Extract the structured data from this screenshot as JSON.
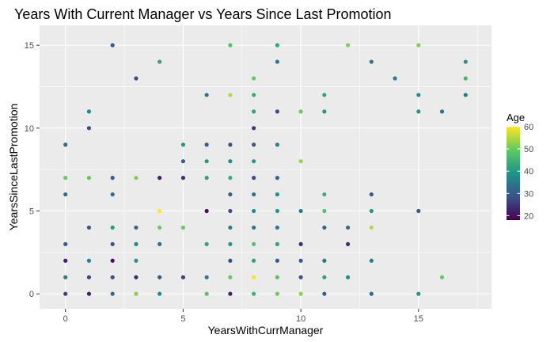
{
  "chart_data": {
    "type": "scatter",
    "title": "Years With Current Manager vs Years Since Last Promotion",
    "xlabel": "YearsWithCurrManager",
    "ylabel": "YearsSinceLastPromotion",
    "xlim": [
      -1.1,
      18.1
    ],
    "ylim": [
      -0.9,
      16.2
    ],
    "xticks": [
      0,
      5,
      10,
      15
    ],
    "yticks": [
      0,
      5,
      10,
      15
    ],
    "grid": true,
    "panel_background": "#ebebeb",
    "grid_color": "#ffffff",
    "color_scale": {
      "name": "viridis",
      "variable": "Age",
      "range": [
        18,
        60
      ],
      "ticks": [
        20,
        30,
        40,
        50,
        60
      ],
      "stops": [
        "#440154",
        "#3b528b",
        "#21918c",
        "#5ec962",
        "#fde725"
      ]
    },
    "legend": {
      "title": "Age",
      "placement": "right"
    },
    "points": [
      {
        "x": 0,
        "y": 9,
        "age": 32
      },
      {
        "x": 0,
        "y": 7,
        "age": 50
      },
      {
        "x": 0,
        "y": 6,
        "age": 33
      },
      {
        "x": 0,
        "y": 3,
        "age": 30
      },
      {
        "x": 0,
        "y": 2,
        "age": 22
      },
      {
        "x": 0,
        "y": 1,
        "age": 35
      },
      {
        "x": 0,
        "y": 0,
        "age": 26
      },
      {
        "x": 1,
        "y": 11,
        "age": 38
      },
      {
        "x": 1,
        "y": 10,
        "age": 28
      },
      {
        "x": 1,
        "y": 7,
        "age": 50
      },
      {
        "x": 1,
        "y": 4,
        "age": 29
      },
      {
        "x": 1,
        "y": 2,
        "age": 36
      },
      {
        "x": 1,
        "y": 1,
        "age": 27
      },
      {
        "x": 1,
        "y": 0,
        "age": 22
      },
      {
        "x": 2,
        "y": 15,
        "age": 30
      },
      {
        "x": 2,
        "y": 7,
        "age": 30
      },
      {
        "x": 2,
        "y": 6,
        "age": 32
      },
      {
        "x": 2,
        "y": 4,
        "age": 40
      },
      {
        "x": 2,
        "y": 3,
        "age": 29
      },
      {
        "x": 2,
        "y": 2,
        "age": 20
      },
      {
        "x": 2,
        "y": 1,
        "age": 28
      },
      {
        "x": 2,
        "y": 0,
        "age": 32
      },
      {
        "x": 3,
        "y": 13,
        "age": 28
      },
      {
        "x": 3,
        "y": 7,
        "age": 52
      },
      {
        "x": 3,
        "y": 4,
        "age": 32
      },
      {
        "x": 3,
        "y": 3,
        "age": 38
      },
      {
        "x": 3,
        "y": 2,
        "age": 40
      },
      {
        "x": 3,
        "y": 1,
        "age": 23
      },
      {
        "x": 3,
        "y": 0,
        "age": 52
      },
      {
        "x": 4,
        "y": 14,
        "age": 42
      },
      {
        "x": 4,
        "y": 7,
        "age": 22
      },
      {
        "x": 4,
        "y": 5,
        "age": 60
      },
      {
        "x": 4,
        "y": 4,
        "age": 50
      },
      {
        "x": 4,
        "y": 3,
        "age": 33
      },
      {
        "x": 4,
        "y": 1,
        "age": 30
      },
      {
        "x": 4,
        "y": 0,
        "age": 38
      },
      {
        "x": 5,
        "y": 9,
        "age": 40
      },
      {
        "x": 5,
        "y": 8,
        "age": 30
      },
      {
        "x": 5,
        "y": 7,
        "age": 24
      },
      {
        "x": 5,
        "y": 4,
        "age": 50
      },
      {
        "x": 5,
        "y": 1,
        "age": 26
      },
      {
        "x": 6,
        "y": 12,
        "age": 35
      },
      {
        "x": 6,
        "y": 9,
        "age": 30
      },
      {
        "x": 6,
        "y": 8,
        "age": 40
      },
      {
        "x": 6,
        "y": 7,
        "age": 42
      },
      {
        "x": 6,
        "y": 5,
        "age": 20
      },
      {
        "x": 6,
        "y": 3,
        "age": 42
      },
      {
        "x": 6,
        "y": 1,
        "age": 36
      },
      {
        "x": 6,
        "y": 0,
        "age": 48
      },
      {
        "x": 7,
        "y": 15,
        "age": 48
      },
      {
        "x": 7,
        "y": 12,
        "age": 55
      },
      {
        "x": 7,
        "y": 9,
        "age": 28
      },
      {
        "x": 7,
        "y": 8,
        "age": 38
      },
      {
        "x": 7,
        "y": 7,
        "age": 44
      },
      {
        "x": 7,
        "y": 6,
        "age": 30
      },
      {
        "x": 7,
        "y": 5,
        "age": 28
      },
      {
        "x": 7,
        "y": 4,
        "age": 36
      },
      {
        "x": 7,
        "y": 3,
        "age": 40
      },
      {
        "x": 7,
        "y": 2,
        "age": 28
      },
      {
        "x": 7,
        "y": 1,
        "age": 50
      },
      {
        "x": 7,
        "y": 0,
        "age": 22
      },
      {
        "x": 8,
        "y": 13,
        "age": 50
      },
      {
        "x": 8,
        "y": 12,
        "age": 44
      },
      {
        "x": 8,
        "y": 11,
        "age": 42
      },
      {
        "x": 8,
        "y": 10,
        "age": 25
      },
      {
        "x": 8,
        "y": 9,
        "age": 30
      },
      {
        "x": 8,
        "y": 8,
        "age": 40
      },
      {
        "x": 8,
        "y": 7,
        "age": 28
      },
      {
        "x": 8,
        "y": 6,
        "age": 34
      },
      {
        "x": 8,
        "y": 5,
        "age": 38
      },
      {
        "x": 8,
        "y": 4,
        "age": 35
      },
      {
        "x": 8,
        "y": 3,
        "age": 48
      },
      {
        "x": 8,
        "y": 2,
        "age": 42
      },
      {
        "x": 8,
        "y": 1,
        "age": 60
      },
      {
        "x": 8,
        "y": 0,
        "age": 45
      },
      {
        "x": 9,
        "y": 15,
        "age": 42
      },
      {
        "x": 9,
        "y": 14,
        "age": 34
      },
      {
        "x": 9,
        "y": 11,
        "age": 28
      },
      {
        "x": 9,
        "y": 9,
        "age": 36
      },
      {
        "x": 9,
        "y": 7,
        "age": 32
      },
      {
        "x": 9,
        "y": 6,
        "age": 38
      },
      {
        "x": 9,
        "y": 5,
        "age": 40
      },
      {
        "x": 9,
        "y": 4,
        "age": 35
      },
      {
        "x": 9,
        "y": 3,
        "age": 42
      },
      {
        "x": 9,
        "y": 2,
        "age": 30
      },
      {
        "x": 9,
        "y": 1,
        "age": 48
      },
      {
        "x": 9,
        "y": 0,
        "age": 50
      },
      {
        "x": 10,
        "y": 11,
        "age": 50
      },
      {
        "x": 10,
        "y": 8,
        "age": 53
      },
      {
        "x": 10,
        "y": 5,
        "age": 36
      },
      {
        "x": 10,
        "y": 3,
        "age": 24
      },
      {
        "x": 10,
        "y": 2,
        "age": 30
      },
      {
        "x": 10,
        "y": 1,
        "age": 28
      },
      {
        "x": 10,
        "y": 0,
        "age": 52
      },
      {
        "x": 11,
        "y": 12,
        "age": 42
      },
      {
        "x": 11,
        "y": 11,
        "age": 40
      },
      {
        "x": 11,
        "y": 6,
        "age": 44
      },
      {
        "x": 11,
        "y": 5,
        "age": 48
      },
      {
        "x": 11,
        "y": 4,
        "age": 32
      },
      {
        "x": 11,
        "y": 2,
        "age": 34
      },
      {
        "x": 11,
        "y": 1,
        "age": 42
      },
      {
        "x": 11,
        "y": 0,
        "age": 30
      },
      {
        "x": 12,
        "y": 15,
        "age": 52
      },
      {
        "x": 12,
        "y": 4,
        "age": 33
      },
      {
        "x": 12,
        "y": 3,
        "age": 24
      },
      {
        "x": 12,
        "y": 1,
        "age": 38
      },
      {
        "x": 13,
        "y": 14,
        "age": 34
      },
      {
        "x": 13,
        "y": 6,
        "age": 30
      },
      {
        "x": 13,
        "y": 5,
        "age": 40
      },
      {
        "x": 13,
        "y": 4,
        "age": 55
      },
      {
        "x": 13,
        "y": 2,
        "age": 36
      },
      {
        "x": 13,
        "y": 0,
        "age": 32
      },
      {
        "x": 14,
        "y": 13,
        "age": 36
      },
      {
        "x": 15,
        "y": 15,
        "age": 52
      },
      {
        "x": 15,
        "y": 12,
        "age": 38
      },
      {
        "x": 15,
        "y": 11,
        "age": 40
      },
      {
        "x": 15,
        "y": 5,
        "age": 30
      },
      {
        "x": 15,
        "y": 0,
        "age": 40
      },
      {
        "x": 16,
        "y": 11,
        "age": 34
      },
      {
        "x": 16,
        "y": 1,
        "age": 50
      },
      {
        "x": 17,
        "y": 14,
        "age": 40
      },
      {
        "x": 17,
        "y": 13,
        "age": 46
      },
      {
        "x": 17,
        "y": 12,
        "age": 36
      }
    ]
  }
}
